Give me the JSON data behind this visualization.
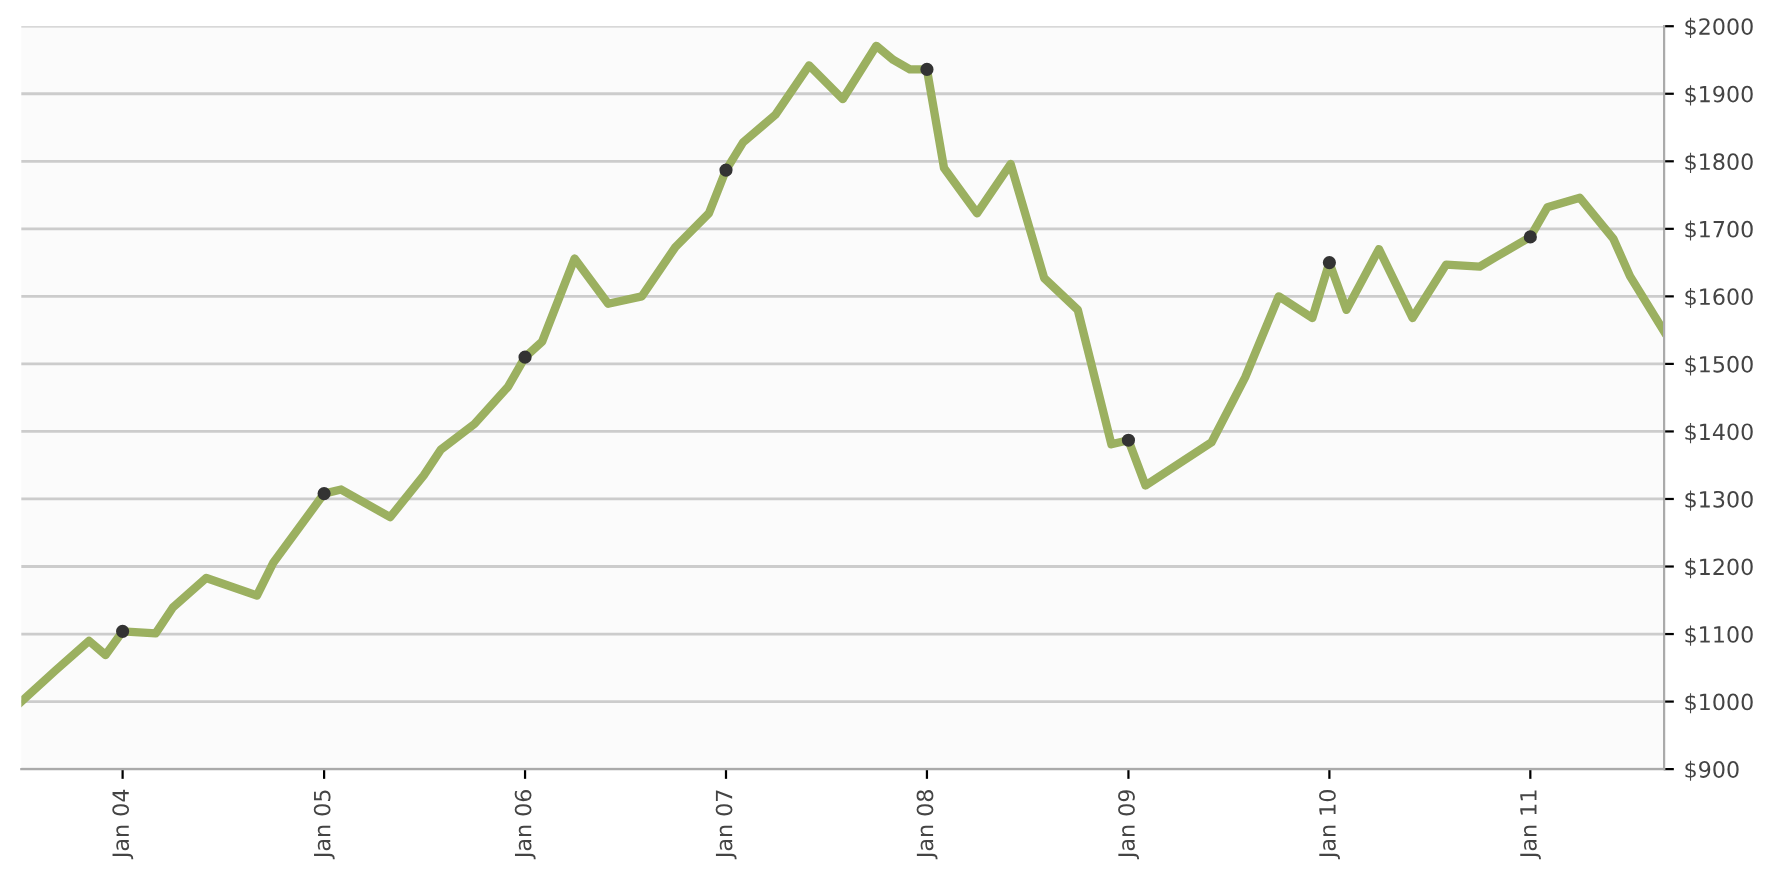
{
  "chart_data": {
    "type": "line",
    "grid": "y",
    "line_style": "solid",
    "xlim": [
      "2003-07",
      "2011-09"
    ],
    "xticks": [
      {
        "value": "2004-01",
        "label": "Jan 04"
      },
      {
        "value": "2005-01",
        "label": "Jan 05"
      },
      {
        "value": "2006-01",
        "label": "Jan 06"
      },
      {
        "value": "2007-01",
        "label": "Jan 07"
      },
      {
        "value": "2008-01",
        "label": "Jan 08"
      },
      {
        "value": "2009-01",
        "label": "Jan 09"
      },
      {
        "value": "2010-01",
        "label": "Jan 10"
      },
      {
        "value": "2011-01",
        "label": "Jan 11"
      }
    ],
    "ylim": [
      900,
      2000
    ],
    "yticks": [
      {
        "value": 900,
        "label": "$900"
      },
      {
        "value": 1000,
        "label": "$1000"
      },
      {
        "value": 1100,
        "label": "$1100"
      },
      {
        "value": 1200,
        "label": "$1200"
      },
      {
        "value": 1300,
        "label": "$1300"
      },
      {
        "value": 1400,
        "label": "$1400"
      },
      {
        "value": 1500,
        "label": "$1500"
      },
      {
        "value": 1600,
        "label": "$1600"
      },
      {
        "value": 1700,
        "label": "$1700"
      },
      {
        "value": 1800,
        "label": "$1800"
      },
      {
        "value": 1900,
        "label": "$1900"
      },
      {
        "value": 2000,
        "label": "$2000"
      }
    ],
    "series": [
      {
        "color": "#9bb060",
        "marker": "none",
        "x": [
          "2003-07",
          "2003-09",
          "2003-11",
          "2003-12",
          "2004-01",
          "2004-03",
          "2004-04",
          "2004-06",
          "2004-09",
          "2004-10",
          "2005-01",
          "2005-02",
          "2005-05",
          "2005-07",
          "2005-08",
          "2005-10",
          "2005-12",
          "2006-01",
          "2006-02",
          "2006-04",
          "2006-06",
          "2006-08",
          "2006-10",
          "2006-12",
          "2007-01",
          "2007-02",
          "2007-04",
          "2007-06",
          "2007-08",
          "2007-10",
          "2007-11",
          "2007-12",
          "2008-01",
          "2008-02",
          "2008-04",
          "2008-06",
          "2008-08",
          "2008-10",
          "2008-12",
          "2009-01",
          "2009-02",
          "2009-06",
          "2009-08",
          "2009-10",
          "2009-12",
          "2010-01",
          "2010-02",
          "2010-04",
          "2010-06",
          "2010-08",
          "2010-10",
          "2010-11",
          "2011-01",
          "2011-02",
          "2011-04",
          "2011-06",
          "2011-07",
          "2011-09"
        ],
        "values": [
          1000,
          1046,
          1090,
          1069,
          1104,
          1101,
          1139,
          1183,
          1157,
          1206,
          1308,
          1314,
          1273,
          1335,
          1373,
          1411,
          1466,
          1510,
          1533,
          1656,
          1589,
          1600,
          1673,
          1723,
          1787,
          1828,
          1869,
          1942,
          1892,
          1971,
          1950,
          1936,
          1936,
          1790,
          1723,
          1796,
          1627,
          1580,
          1381,
          1387,
          1320,
          1384,
          1480,
          1600,
          1568,
          1650,
          1580,
          1670,
          1568,
          1647,
          1644,
          1659,
          1688,
          1732,
          1746,
          1685,
          1630,
          1548
        ]
      },
      {
        "type": "scatter",
        "color": "#333333",
        "marker": "circle",
        "x": [
          "2004-01",
          "2005-01",
          "2006-01",
          "2007-01",
          "2008-01",
          "2009-01",
          "2010-01",
          "2011-01"
        ],
        "values": [
          1104,
          1308,
          1510,
          1787,
          1936,
          1387,
          1650,
          1688
        ]
      }
    ]
  }
}
